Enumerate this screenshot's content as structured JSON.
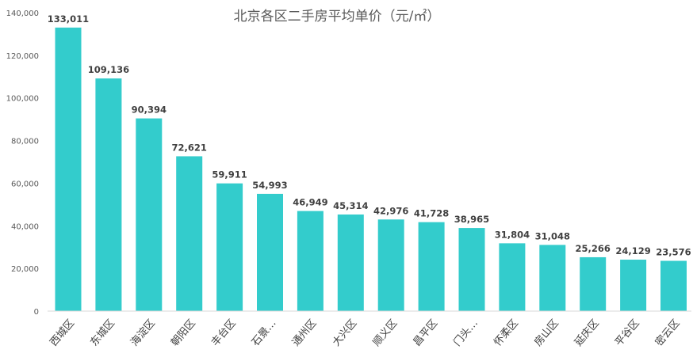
{
  "chart_data": {
    "type": "bar",
    "title": "北京各区二手房平均单价（元/㎡）",
    "xlabel": "",
    "ylabel": "",
    "ylim": [
      0,
      140000
    ],
    "yticks": [
      0,
      20000,
      40000,
      60000,
      80000,
      100000,
      120000,
      140000
    ],
    "ytick_labels": [
      "0",
      "20,000",
      "40,000",
      "60,000",
      "80,000",
      "100,000",
      "120,000",
      "140,000"
    ],
    "categories": [
      "西城区",
      "东城区",
      "海淀区",
      "朝阳区",
      "丰台区",
      "石景…",
      "通州区",
      "大兴区",
      "顺义区",
      "昌平区",
      "门头…",
      "怀柔区",
      "房山区",
      "延庆区",
      "平谷区",
      "密云区"
    ],
    "values": [
      133011,
      109136,
      90394,
      72621,
      59911,
      54993,
      46949,
      45314,
      42976,
      41728,
      38965,
      31804,
      31048,
      25266,
      24129,
      23576
    ],
    "data_labels": [
      "133,011",
      "109,136",
      "90,394",
      "72,621",
      "59,911",
      "54,993",
      "46,949",
      "45,314",
      "42,976",
      "41,728",
      "38,965",
      "31,804",
      "31,048",
      "25,266",
      "24,129",
      "23,576"
    ],
    "grid": false,
    "bar_color": "#33CCCC"
  }
}
